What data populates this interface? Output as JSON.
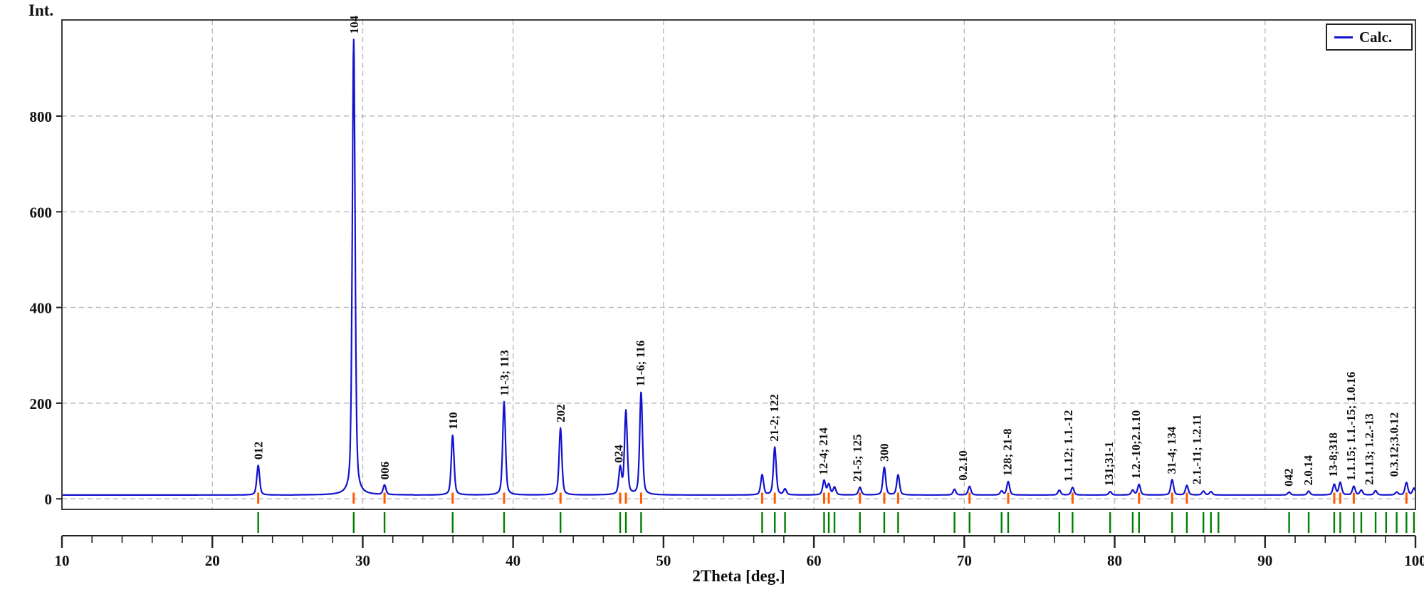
{
  "figure": {
    "background": "#ffffff",
    "border_color": "#3c3c3c",
    "grid_color": "#b9b9b9",
    "axis_color": "#222222",
    "text_color": "#111111"
  },
  "chart_data": {
    "type": "line",
    "title": "",
    "xlabel": "2Theta [deg.]",
    "ylabel": "Int.",
    "xlim": [
      10,
      100
    ],
    "ylim": [
      -22,
      1001
    ],
    "x_major_ticks": [
      10,
      20,
      30,
      40,
      50,
      60,
      70,
      80,
      90,
      100
    ],
    "x_minor_tick_step": 2,
    "y_ticks": [
      0,
      200,
      400,
      600,
      800
    ],
    "grid": true,
    "legend": {
      "label": "Calc.",
      "position": "top-right"
    },
    "trace_color": "#1313cd",
    "baseline": 8,
    "peak_fwhm_deg": 0.22,
    "peaks": [
      {
        "two_theta": 23.05,
        "intensity": 62
      },
      {
        "two_theta": 29.4,
        "intensity": 952
      },
      {
        "two_theta": 31.45,
        "intensity": 20
      },
      {
        "two_theta": 35.98,
        "intensity": 125
      },
      {
        "two_theta": 39.4,
        "intensity": 195
      },
      {
        "two_theta": 43.15,
        "intensity": 140
      },
      {
        "two_theta": 47.12,
        "intensity": 55
      },
      {
        "two_theta": 47.5,
        "intensity": 175
      },
      {
        "two_theta": 48.51,
        "intensity": 215
      },
      {
        "two_theta": 56.56,
        "intensity": 42
      },
      {
        "two_theta": 57.4,
        "intensity": 100
      },
      {
        "two_theta": 58.08,
        "intensity": 12
      },
      {
        "two_theta": 60.68,
        "intensity": 30
      },
      {
        "two_theta": 60.99,
        "intensity": 22
      },
      {
        "two_theta": 61.37,
        "intensity": 16
      },
      {
        "two_theta": 63.06,
        "intensity": 16
      },
      {
        "two_theta": 64.68,
        "intensity": 58
      },
      {
        "two_theta": 65.6,
        "intensity": 42
      },
      {
        "two_theta": 69.35,
        "intensity": 12
      },
      {
        "two_theta": 70.35,
        "intensity": 18
      },
      {
        "two_theta": 72.48,
        "intensity": 8
      },
      {
        "two_theta": 72.92,
        "intensity": 28
      },
      {
        "two_theta": 76.32,
        "intensity": 10
      },
      {
        "two_theta": 77.2,
        "intensity": 16
      },
      {
        "two_theta": 79.7,
        "intensity": 7
      },
      {
        "two_theta": 81.2,
        "intensity": 10
      },
      {
        "two_theta": 81.62,
        "intensity": 22
      },
      {
        "two_theta": 83.82,
        "intensity": 32
      },
      {
        "two_theta": 84.8,
        "intensity": 20
      },
      {
        "two_theta": 85.9,
        "intensity": 8
      },
      {
        "two_theta": 86.4,
        "intensity": 7
      },
      {
        "two_theta": 91.6,
        "intensity": 6
      },
      {
        "two_theta": 92.9,
        "intensity": 8
      },
      {
        "two_theta": 94.6,
        "intensity": 22
      },
      {
        "two_theta": 95.0,
        "intensity": 26
      },
      {
        "two_theta": 95.9,
        "intensity": 18
      },
      {
        "two_theta": 96.4,
        "intensity": 10
      },
      {
        "two_theta": 97.35,
        "intensity": 9
      },
      {
        "two_theta": 98.75,
        "intensity": 6
      },
      {
        "two_theta": 99.4,
        "intensity": 26
      },
      {
        "two_theta": 99.9,
        "intensity": 14
      }
    ],
    "peak_labels": [
      {
        "text": "012",
        "two_theta": 23.05,
        "peak_intensity": 62
      },
      {
        "text": "104",
        "two_theta": 29.4,
        "peak_intensity": 952
      },
      {
        "text": "006",
        "two_theta": 31.45,
        "peak_intensity": 20
      },
      {
        "text": "110",
        "two_theta": 35.98,
        "peak_intensity": 125
      },
      {
        "text": "11-3; 113",
        "two_theta": 39.4,
        "peak_intensity": 195
      },
      {
        "text": "202",
        "two_theta": 43.15,
        "peak_intensity": 140
      },
      {
        "text": "024",
        "two_theta": 47.0,
        "peak_intensity": 55
      },
      {
        "text": "11-6; 116",
        "two_theta": 48.45,
        "peak_intensity": 215
      },
      {
        "text": "21-2; 122",
        "two_theta": 57.35,
        "peak_intensity": 100
      },
      {
        "text": "12-4; 214",
        "two_theta": 60.6,
        "peak_intensity": 30
      },
      {
        "text": "21-5; 125",
        "two_theta": 62.85,
        "peak_intensity": 16
      },
      {
        "text": "300",
        "two_theta": 64.65,
        "peak_intensity": 58
      },
      {
        "text": "0.2.10",
        "two_theta": 69.9,
        "peak_intensity": 18
      },
      {
        "text": "128; 21-8",
        "two_theta": 72.85,
        "peak_intensity": 28
      },
      {
        "text": "1.1.12; 1.1.-12",
        "two_theta": 76.9,
        "peak_intensity": 16
      },
      {
        "text": "131;31-1",
        "two_theta": 79.6,
        "peak_intensity": 7
      },
      {
        "text": "1.2.-10;2.1.10",
        "two_theta": 81.4,
        "peak_intensity": 22
      },
      {
        "text": "31-4; 134",
        "two_theta": 83.75,
        "peak_intensity": 32
      },
      {
        "text": "2.1.-11; 1.2.11",
        "two_theta": 85.45,
        "peak_intensity": 10
      },
      {
        "text": "042",
        "two_theta": 91.55,
        "peak_intensity": 6
      },
      {
        "text": "2.0.14",
        "two_theta": 92.85,
        "peak_intensity": 8
      },
      {
        "text": "13-8;318",
        "two_theta": 94.5,
        "peak_intensity": 26
      },
      {
        "text": "1.1.15; 1.1.-15; 1.0.16",
        "two_theta": 95.7,
        "peak_intensity": 18
      },
      {
        "text": "2.1.13; 1.2.-13",
        "two_theta": 96.9,
        "peak_intensity": 9
      },
      {
        "text": "0.3.12;3.0.12",
        "two_theta": 98.55,
        "peak_intensity": 26
      }
    ],
    "bragg_ticks": {
      "color": "#007f00",
      "positions": [
        23.05,
        29.4,
        31.45,
        35.98,
        39.4,
        43.15,
        47.12,
        47.5,
        48.51,
        56.56,
        57.4,
        58.08,
        60.68,
        60.99,
        61.37,
        63.06,
        64.68,
        65.6,
        69.35,
        70.35,
        72.48,
        72.92,
        76.32,
        77.2,
        79.7,
        81.2,
        81.62,
        83.82,
        84.8,
        85.9,
        86.4,
        86.9,
        91.6,
        92.9,
        94.6,
        95.0,
        95.9,
        96.4,
        97.35,
        98.05,
        98.75,
        99.4,
        99.9
      ]
    },
    "peak_markers": {
      "color": "#ff5a00",
      "positions": [
        23.05,
        29.4,
        31.45,
        35.98,
        39.4,
        43.15,
        47.12,
        47.5,
        48.51,
        56.56,
        57.4,
        60.68,
        60.99,
        63.06,
        64.68,
        65.6,
        70.35,
        72.92,
        77.2,
        81.62,
        83.82,
        84.8,
        94.6,
        95.0,
        95.9,
        99.4
      ]
    }
  }
}
